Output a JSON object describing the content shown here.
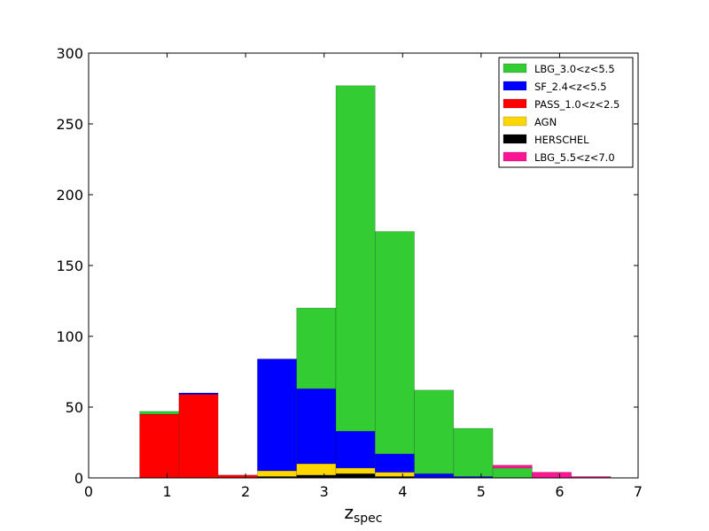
{
  "chart_data": {
    "type": "bar",
    "stacked": true,
    "histogram": true,
    "xlabel_base": "z",
    "xlabel_sub": "spec",
    "xlim": [
      0,
      7
    ],
    "ylim": [
      0,
      300
    ],
    "xticks": [
      0,
      1,
      2,
      3,
      4,
      5,
      6,
      7
    ],
    "yticks": [
      0,
      50,
      100,
      150,
      200,
      250,
      300
    ],
    "legend_position": "top-right",
    "bins": [
      [
        0.65,
        1.15
      ],
      [
        1.15,
        1.65
      ],
      [
        1.65,
        2.15
      ],
      [
        2.15,
        2.65
      ],
      [
        2.65,
        3.15
      ],
      [
        3.15,
        3.65
      ],
      [
        3.65,
        4.15
      ],
      [
        4.15,
        4.65
      ],
      [
        4.65,
        5.15
      ],
      [
        5.15,
        5.65
      ],
      [
        5.65,
        6.15
      ],
      [
        6.15,
        6.65
      ]
    ],
    "series": [
      {
        "name": "HERSCHEL",
        "color": "#000000",
        "values": [
          0,
          0,
          0,
          1,
          2,
          3,
          1,
          0,
          0,
          0,
          0,
          0
        ]
      },
      {
        "name": "AGN",
        "color": "#ffd700",
        "values": [
          0,
          0,
          0,
          4,
          8,
          4,
          3,
          0,
          0,
          0,
          0,
          0
        ]
      },
      {
        "name": "PASS_1.0<z<2.5",
        "color": "#ff0000",
        "values": [
          45,
          59,
          2,
          0,
          0,
          0,
          0,
          0,
          0,
          0,
          0,
          0
        ]
      },
      {
        "name": "SF_2.4<z<5.5",
        "color": "#0000ff",
        "values": [
          0,
          1,
          0,
          79,
          53,
          26,
          13,
          3,
          1,
          0,
          0,
          0
        ]
      },
      {
        "name": "LBG_3.0<z<5.5",
        "color": "#33cc33",
        "values": [
          2,
          0,
          0,
          0,
          57,
          244,
          157,
          59,
          34,
          7,
          0,
          0
        ]
      },
      {
        "name": "LBG_5.5<z<7.0",
        "color": "#ff1493",
        "values": [
          0,
          0,
          0,
          0,
          0,
          0,
          0,
          0,
          0,
          2,
          4,
          1
        ]
      }
    ],
    "legend_order": [
      "LBG_3.0<z<5.5",
      "SF_2.4<z<5.5",
      "PASS_1.0<z<2.5",
      "AGN",
      "HERSCHEL",
      "LBG_5.5<z<7.0"
    ]
  }
}
